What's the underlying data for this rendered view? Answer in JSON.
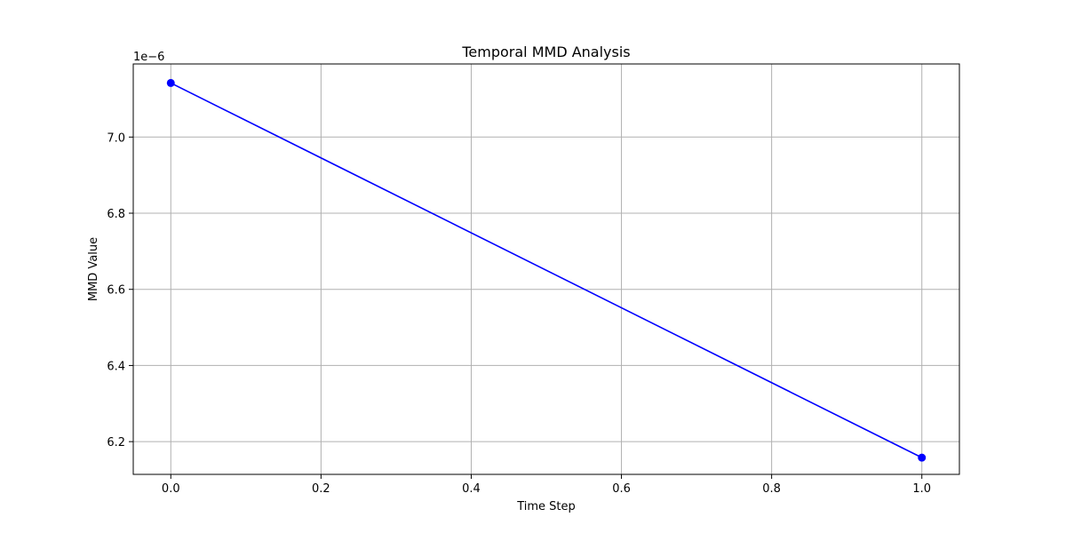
{
  "chart_data": {
    "type": "line",
    "title": "Temporal MMD Analysis",
    "xlabel": "Time Step",
    "ylabel": "MMD Value",
    "y_offset_label": "1e−6",
    "x_ticks": [
      "0.0",
      "0.2",
      "0.4",
      "0.6",
      "0.8",
      "1.0"
    ],
    "y_ticks": [
      "6.2",
      "6.4",
      "6.6",
      "6.8",
      "7.0"
    ],
    "xlim": [
      -0.05,
      1.05
    ],
    "ylim": [
      6.114e-06,
      7.192e-06
    ],
    "grid": true,
    "series": [
      {
        "color": "#0000ff",
        "marker": "circle",
        "x": [
          0.0,
          1.0
        ],
        "y": [
          7.142e-06,
          6.158e-06
        ]
      }
    ]
  }
}
